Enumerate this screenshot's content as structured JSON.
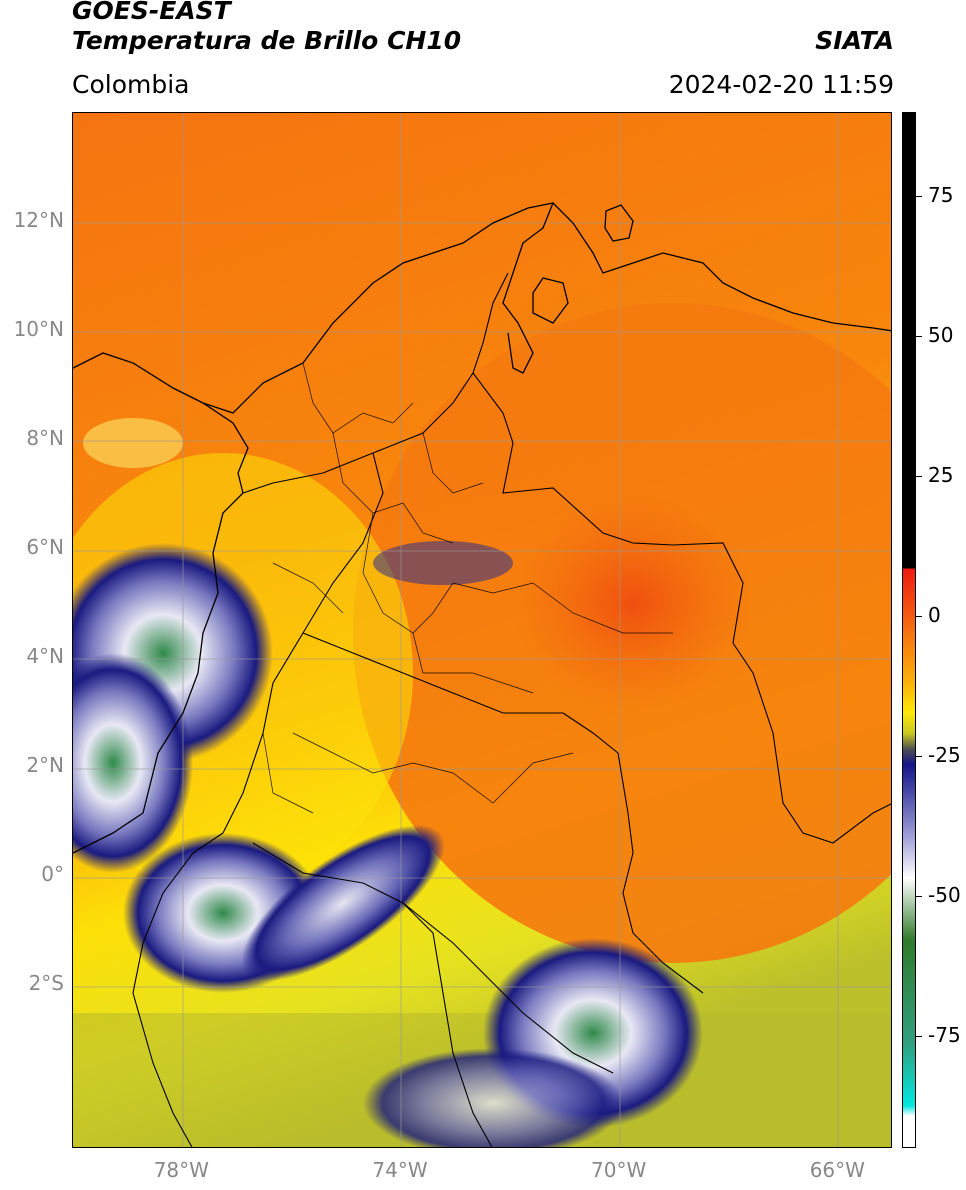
{
  "header": {
    "title_line1": "GOES-EAST",
    "title_line2": "Temperatura de Brillo CH10",
    "brand": "SIATA",
    "region": "Colombia",
    "datetime": "2024-02-20 11:59"
  },
  "map": {
    "lon_range": [
      -80,
      -65
    ],
    "lat_range": [
      -5,
      14
    ],
    "lat_ticks": [
      {
        "value": 12,
        "label": "12°N"
      },
      {
        "value": 10,
        "label": "10°N"
      },
      {
        "value": 8,
        "label": "8°N"
      },
      {
        "value": 6,
        "label": "6°N"
      },
      {
        "value": 4,
        "label": "4°N"
      },
      {
        "value": 2,
        "label": "2°N"
      },
      {
        "value": 0,
        "label": "0°"
      },
      {
        "value": -2,
        "label": "2°S"
      }
    ],
    "lon_ticks": [
      {
        "value": -78,
        "label": "78°W"
      },
      {
        "value": -74,
        "label": "74°W"
      },
      {
        "value": -70,
        "label": "70°W"
      },
      {
        "value": -66,
        "label": "66°W"
      }
    ],
    "grid": true
  },
  "colorbar": {
    "range": [
      -95,
      90
    ],
    "ticks": [
      {
        "value": 75,
        "label": "75"
      },
      {
        "value": 50,
        "label": "50"
      },
      {
        "value": 25,
        "label": "25"
      },
      {
        "value": 0,
        "label": "0"
      },
      {
        "value": -25,
        "label": "-25"
      },
      {
        "value": -50,
        "label": "-50"
      },
      {
        "value": -75,
        "label": "-75"
      }
    ]
  }
}
